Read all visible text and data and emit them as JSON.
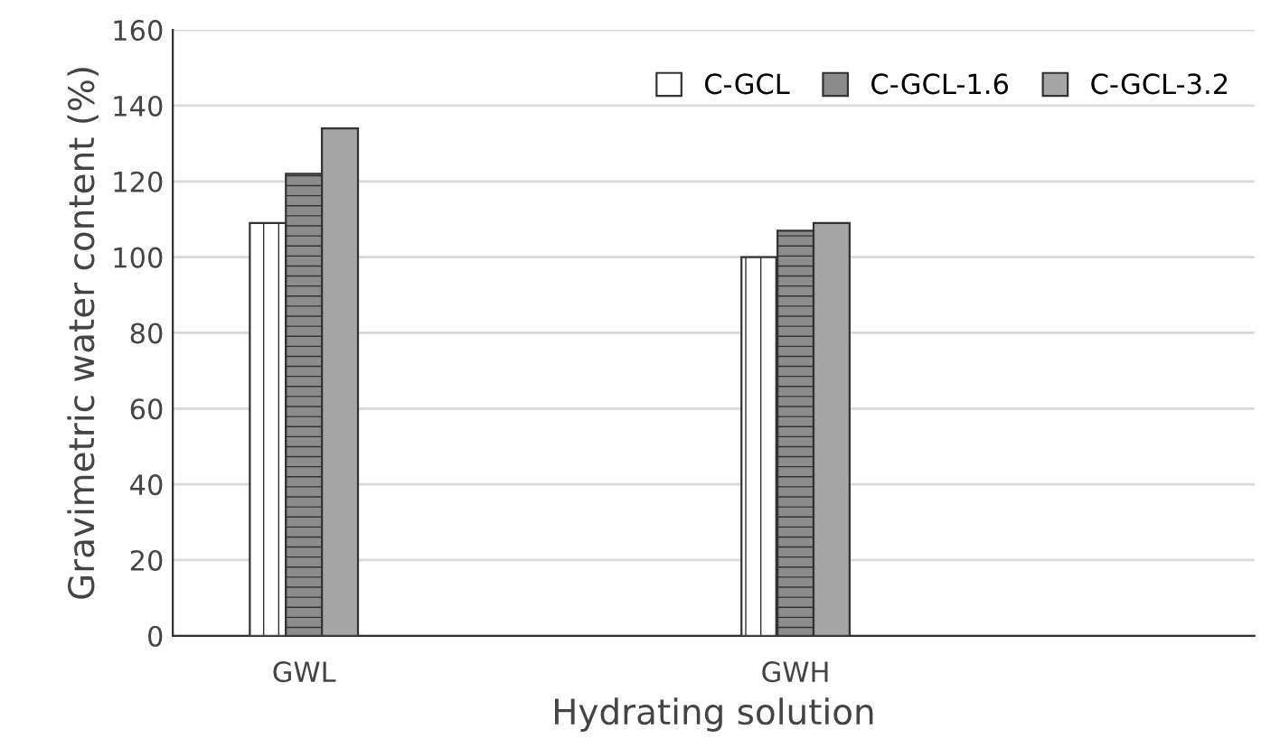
{
  "chart_data": {
    "type": "bar",
    "xlabel": "Hydrating solution",
    "ylabel": "Gravimetric water content (%)",
    "categories": [
      "GWL",
      "GWH"
    ],
    "series": [
      {
        "name": "C-GCL",
        "color": "#ffffff",
        "values": [
          109,
          100
        ]
      },
      {
        "name": "C-GCL-1.6",
        "color": "#8c8c8c",
        "values": [
          122,
          107
        ]
      },
      {
        "name": "C-GCL-3.2",
        "color": "#a6a6a6",
        "values": [
          134,
          109
        ]
      }
    ],
    "ylim": [
      0,
      160
    ],
    "yticks": [
      0,
      20,
      40,
      60,
      80,
      100,
      120,
      140,
      160
    ],
    "grid": "y",
    "legend": "top right"
  }
}
